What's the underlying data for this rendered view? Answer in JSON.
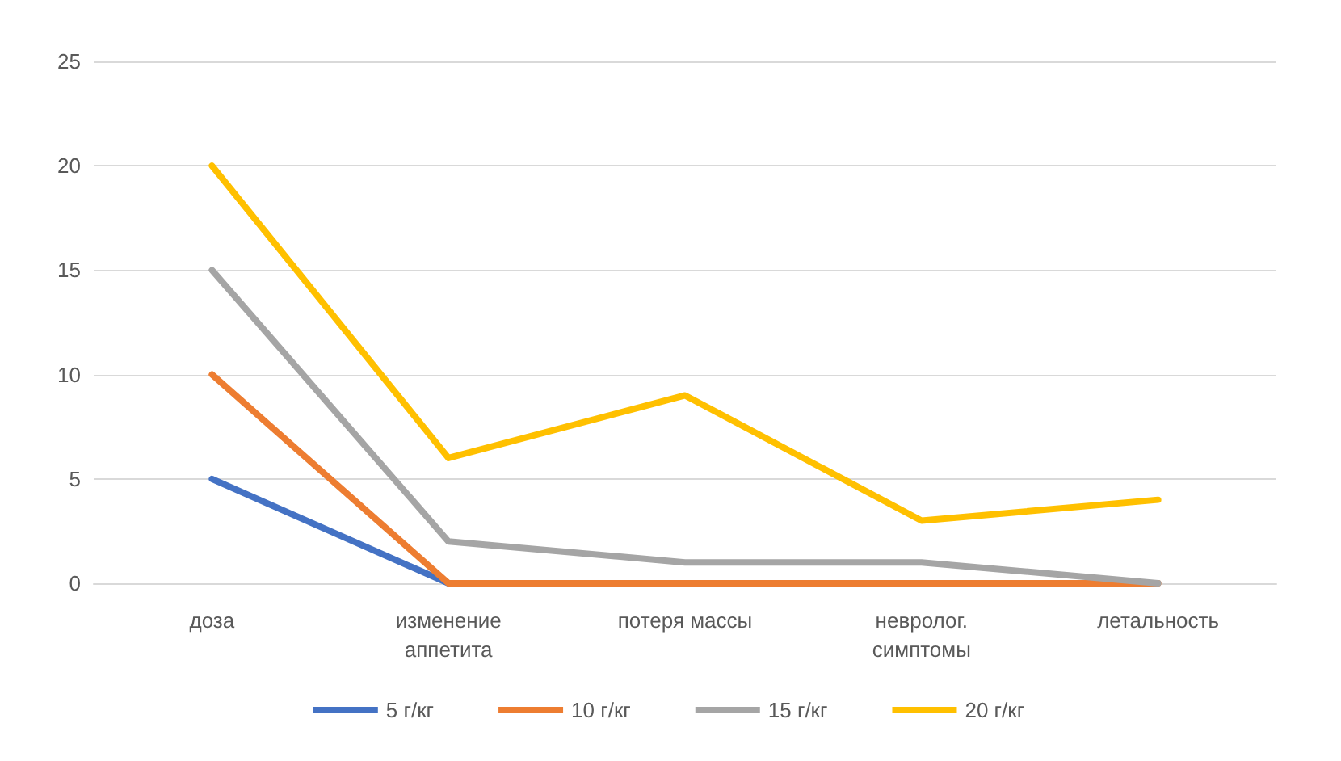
{
  "chart_data": {
    "type": "line",
    "categories": [
      "доза",
      "изменение аппетита",
      "потеря массы",
      "невролог. симптомы",
      "летальность"
    ],
    "series": [
      {
        "name": "5 г/кг",
        "color": "#4472c4",
        "values": [
          5,
          0,
          null,
          null,
          null
        ]
      },
      {
        "name": "10 г/кг",
        "color": "#ed7d31",
        "values": [
          10,
          0,
          0,
          0,
          0
        ]
      },
      {
        "name": "15 г/кг",
        "color": "#a5a5a5",
        "values": [
          15,
          2,
          1,
          1,
          0
        ]
      },
      {
        "name": "20 г/кг",
        "color": "#ffc000",
        "values": [
          20,
          6,
          9,
          3,
          4
        ]
      }
    ],
    "ylim": [
      0,
      25
    ],
    "yticks": [
      0,
      5,
      10,
      15,
      20,
      25
    ],
    "grid": "y",
    "legend": "bottom",
    "marker": "none",
    "line_style": "solid"
  }
}
